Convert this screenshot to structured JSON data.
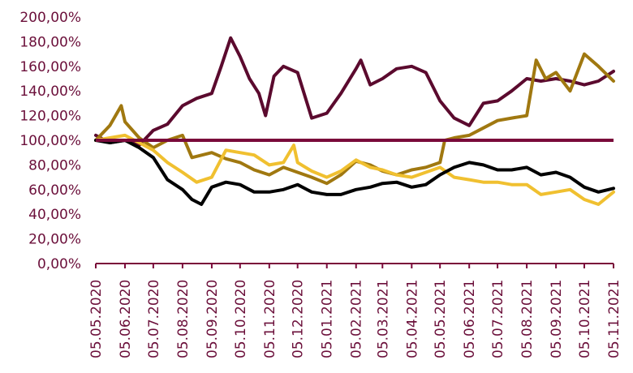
{
  "chart_data": {
    "type": "line",
    "title": "",
    "xlabel": "",
    "ylabel": "",
    "ylim": [
      0,
      200
    ],
    "y_ticks": [
      "0,00%",
      "20,00%",
      "40,00%",
      "60,00%",
      "80,00%",
      "100,00%",
      "120,00%",
      "140,00%",
      "160,00%",
      "180,00%",
      "200,00%"
    ],
    "x_ticks": [
      "05.05.2020",
      "05.06.2020",
      "05.07.2020",
      "05.08.2020",
      "05.09.2020",
      "05.10.2020",
      "05.11.2020",
      "05.12.2020",
      "05.01.2021",
      "05.02.2021",
      "05.03.2021",
      "05.04.2021",
      "05.05.2021",
      "05.06.2021",
      "05.07.2021",
      "05.08.2021",
      "05.09.2021",
      "05.10.2021",
      "05.11.2021"
    ],
    "xlim": [
      "05.05.2020",
      "05.11.2021"
    ],
    "grid": false,
    "legend": "none",
    "reference_line": {
      "y": 100,
      "color": "#7a0a3a"
    },
    "axis_color": "#7a0a3a",
    "series": [
      {
        "color": "#5b0a2e",
        "x": [
          "05.05.2020",
          "20.05.2020",
          "05.06.2020",
          "20.06.2020",
          "05.07.2020",
          "20.07.2020",
          "05.08.2020",
          "20.08.2020",
          "05.09.2020",
          "15.09.2020",
          "25.09.2020",
          "05.10.2020",
          "15.10.2020",
          "25.10.2020",
          "01.11.2020",
          "10.11.2020",
          "20.11.2020",
          "05.12.2020",
          "20.12.2020",
          "05.01.2021",
          "20.01.2021",
          "05.02.2021",
          "10.02.2021",
          "20.02.2021",
          "05.03.2021",
          "20.03.2021",
          "05.04.2021",
          "20.04.2021",
          "05.05.2021",
          "20.05.2021",
          "05.06.2021",
          "20.06.2021",
          "05.07.2021",
          "20.07.2021",
          "05.08.2021",
          "20.08.2021",
          "05.09.2021",
          "20.09.2021",
          "05.10.2021",
          "20.10.2021",
          "05.11.2021"
        ],
        "values": [
          104,
          98,
          100,
          96,
          108,
          113,
          128,
          134,
          138,
          160,
          183,
          168,
          150,
          138,
          120,
          152,
          160,
          155,
          118,
          122,
          138,
          158,
          165,
          145,
          150,
          158,
          160,
          155,
          132,
          118,
          112,
          130,
          132,
          140,
          150,
          148,
          150,
          148,
          145,
          148,
          156
        ]
      },
      {
        "color": "#a07810",
        "x": [
          "05.05.2020",
          "20.05.2020",
          "01.06.2020",
          "05.06.2020",
          "20.06.2020",
          "05.07.2020",
          "20.07.2020",
          "05.08.2020",
          "15.08.2020",
          "05.09.2020",
          "20.09.2020",
          "05.10.2020",
          "20.10.2020",
          "05.11.2020",
          "20.11.2020",
          "05.12.2020",
          "20.12.2020",
          "05.01.2021",
          "20.01.2021",
          "05.02.2021",
          "20.02.2021",
          "05.03.2021",
          "20.03.2021",
          "05.04.2021",
          "20.04.2021",
          "05.05.2021",
          "10.05.2021",
          "20.05.2021",
          "05.06.2021",
          "20.06.2021",
          "05.07.2021",
          "20.07.2021",
          "05.08.2021",
          "15.08.2021",
          "25.08.2021",
          "05.09.2021",
          "20.09.2021",
          "05.10.2021",
          "20.10.2021",
          "05.11.2021"
        ],
        "values": [
          100,
          112,
          128,
          115,
          102,
          94,
          100,
          104,
          86,
          90,
          85,
          82,
          76,
          72,
          78,
          74,
          70,
          65,
          72,
          83,
          80,
          75,
          72,
          76,
          78,
          82,
          100,
          102,
          104,
          110,
          116,
          118,
          120,
          165,
          150,
          155,
          140,
          170,
          160,
          148
        ]
      },
      {
        "color": "#f0c030",
        "x": [
          "05.05.2020",
          "20.05.2020",
          "05.06.2020",
          "20.06.2020",
          "05.07.2020",
          "20.07.2020",
          "05.08.2020",
          "20.08.2020",
          "05.09.2020",
          "20.09.2020",
          "05.10.2020",
          "20.10.2020",
          "05.11.2020",
          "20.11.2020",
          "01.12.2020",
          "05.12.2020",
          "20.12.2020",
          "05.01.2021",
          "20.01.2021",
          "05.02.2021",
          "20.02.2021",
          "05.03.2021",
          "20.03.2021",
          "05.04.2021",
          "20.04.2021",
          "05.05.2021",
          "20.05.2021",
          "05.06.2021",
          "20.06.2021",
          "05.07.2021",
          "20.07.2021",
          "05.08.2021",
          "20.08.2021",
          "05.09.2021",
          "20.09.2021",
          "05.10.2021",
          "20.10.2021",
          "05.11.2021"
        ],
        "values": [
          100,
          102,
          104,
          98,
          92,
          82,
          74,
          66,
          70,
          92,
          90,
          88,
          80,
          82,
          96,
          82,
          75,
          70,
          75,
          84,
          78,
          76,
          72,
          70,
          74,
          78,
          70,
          68,
          66,
          66,
          64,
          64,
          56,
          58,
          60,
          52,
          48,
          58
        ]
      },
      {
        "color": "#000000",
        "x": [
          "05.05.2020",
          "20.05.2020",
          "05.06.2020",
          "20.06.2020",
          "05.07.2020",
          "20.07.2020",
          "05.08.2020",
          "15.08.2020",
          "25.08.2020",
          "05.09.2020",
          "20.09.2020",
          "05.10.2020",
          "20.10.2020",
          "05.11.2020",
          "20.11.2020",
          "05.12.2020",
          "20.12.2020",
          "05.01.2021",
          "20.01.2021",
          "05.02.2021",
          "20.02.2021",
          "05.03.2021",
          "20.03.2021",
          "05.04.2021",
          "20.04.2021",
          "05.05.2021",
          "20.05.2021",
          "05.06.2021",
          "20.06.2021",
          "05.07.2021",
          "20.07.2021",
          "05.08.2021",
          "20.08.2021",
          "05.09.2021",
          "20.09.2021",
          "05.10.2021",
          "20.10.2021",
          "05.11.2021"
        ],
        "values": [
          100,
          98,
          100,
          94,
          86,
          68,
          60,
          52,
          48,
          62,
          66,
          64,
          58,
          58,
          60,
          64,
          58,
          56,
          56,
          60,
          62,
          65,
          66,
          62,
          64,
          72,
          78,
          82,
          80,
          76,
          76,
          78,
          72,
          74,
          70,
          62,
          58,
          61
        ]
      }
    ]
  }
}
